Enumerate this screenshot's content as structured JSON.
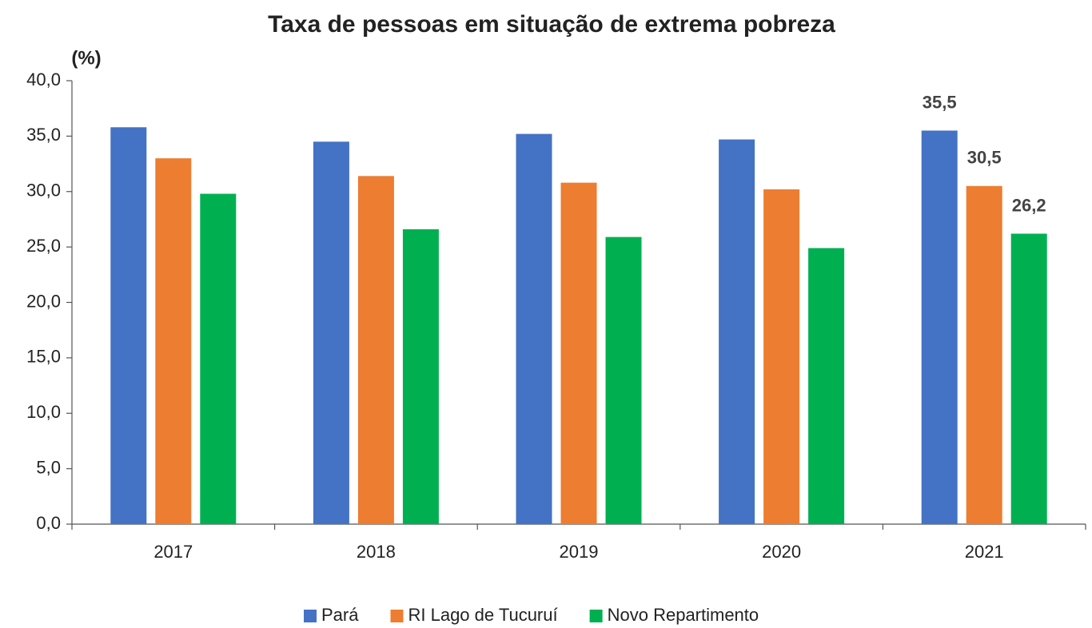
{
  "chart_data": {
    "type": "bar",
    "title": "Taxa de pessoas em situação de extrema pobreza",
    "y_label": "(%)",
    "categories": [
      "2017",
      "2018",
      "2019",
      "2020",
      "2021"
    ],
    "series": [
      {
        "name": "Pará",
        "color": "#4472c4",
        "values": [
          35.8,
          34.5,
          35.2,
          34.7,
          35.5
        ],
        "value_labels": [
          null,
          null,
          null,
          null,
          "35,5"
        ]
      },
      {
        "name": "RI Lago de Tucuruí",
        "color": "#ed7d31",
        "values": [
          33.0,
          31.4,
          30.8,
          30.2,
          30.5
        ],
        "value_labels": [
          null,
          null,
          null,
          null,
          "30,5"
        ]
      },
      {
        "name": "Novo Repartimento",
        "color": "#00b050",
        "values": [
          29.8,
          26.6,
          25.9,
          24.9,
          26.2
        ],
        "value_labels": [
          null,
          null,
          null,
          null,
          "26,2"
        ]
      }
    ],
    "ylim": [
      0,
      40
    ],
    "yticks": [
      {
        "value": 0,
        "label": "0,0"
      },
      {
        "value": 5,
        "label": "5,0"
      },
      {
        "value": 10,
        "label": "10,0"
      },
      {
        "value": 15,
        "label": "15,0"
      },
      {
        "value": 20,
        "label": "20,0"
      },
      {
        "value": 25,
        "label": "25,0"
      },
      {
        "value": 30,
        "label": "30,0"
      },
      {
        "value": 35,
        "label": "35,0"
      },
      {
        "value": 40,
        "label": "40,0"
      }
    ],
    "grid": false,
    "legend": "bottom"
  }
}
